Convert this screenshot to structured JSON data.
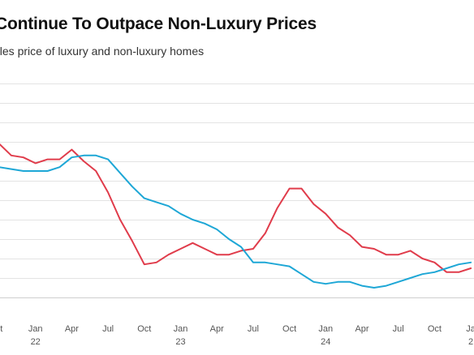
{
  "chart_data": {
    "type": "line",
    "title": "Continue To Outpace Non-Luxury Prices",
    "subtitle": "ales price of luxury and non-luxury homes",
    "xlabel": "",
    "ylabel": "",
    "grid": true,
    "legend": "none",
    "x": [
      "Oct 2021",
      "Nov 2021",
      "Dec 2021",
      "Jan 2022",
      "Feb 2022",
      "Mar 2022",
      "Apr 2022",
      "May 2022",
      "Jun 2022",
      "Jul 2022",
      "Aug 2022",
      "Sep 2022",
      "Oct 2022",
      "Nov 2022",
      "Dec 2022",
      "Jan 2023",
      "Feb 2023",
      "Mar 2023",
      "Apr 2023",
      "May 2023",
      "Jun 2023",
      "Jul 2023",
      "Aug 2023",
      "Sep 2023",
      "Oct 2023",
      "Nov 2023",
      "Dec 2023",
      "Jan 2024",
      "Feb 2024",
      "Mar 2024",
      "Apr 2024",
      "May 2024",
      "Jun 2024",
      "Jul 2024",
      "Aug 2024",
      "Sep 2024",
      "Oct 2024",
      "Nov 2024",
      "Dec 2024",
      "Jan 2025"
    ],
    "x_tick_labels": [
      {
        "month": "ct",
        "year": ""
      },
      {
        "month": "Jan",
        "year": "22"
      },
      {
        "month": "Apr",
        "year": ""
      },
      {
        "month": "Jul",
        "year": ""
      },
      {
        "month": "Oct",
        "year": ""
      },
      {
        "month": "Jan",
        "year": "23"
      },
      {
        "month": "Apr",
        "year": ""
      },
      {
        "month": "Jul",
        "year": ""
      },
      {
        "month": "Oct",
        "year": ""
      },
      {
        "month": "Jan",
        "year": "24"
      },
      {
        "month": "Apr",
        "year": ""
      },
      {
        "month": "Jul",
        "year": ""
      },
      {
        "month": "Oct",
        "year": ""
      },
      {
        "month": "Ja",
        "year": "2"
      }
    ],
    "ylim": [
      0,
      11
    ],
    "series": [
      {
        "color": "#e03c4b",
        "values": [
          7.9,
          7.3,
          7.2,
          6.9,
          7.1,
          7.1,
          7.6,
          7.0,
          6.5,
          5.4,
          4.0,
          2.9,
          1.7,
          1.8,
          2.2,
          2.5,
          2.8,
          2.5,
          2.2,
          2.2,
          2.4,
          2.5,
          3.3,
          4.6,
          5.6,
          5.6,
          4.8,
          4.3,
          3.6,
          3.2,
          2.6,
          2.5,
          2.2,
          2.2,
          2.4,
          2.0,
          1.8,
          1.3,
          1.3,
          1.5
        ]
      },
      {
        "color": "#1ea7d6",
        "values": [
          6.7,
          6.6,
          6.5,
          6.5,
          6.5,
          6.7,
          7.2,
          7.3,
          7.3,
          7.1,
          6.4,
          5.7,
          5.1,
          4.9,
          4.7,
          4.3,
          4.0,
          3.8,
          3.5,
          3.0,
          2.6,
          1.8,
          1.8,
          1.7,
          1.6,
          1.2,
          0.8,
          0.7,
          0.8,
          0.8,
          0.6,
          0.5,
          0.6,
          0.8,
          1.0,
          1.2,
          1.3,
          1.5,
          1.7,
          1.8
        ]
      }
    ]
  }
}
